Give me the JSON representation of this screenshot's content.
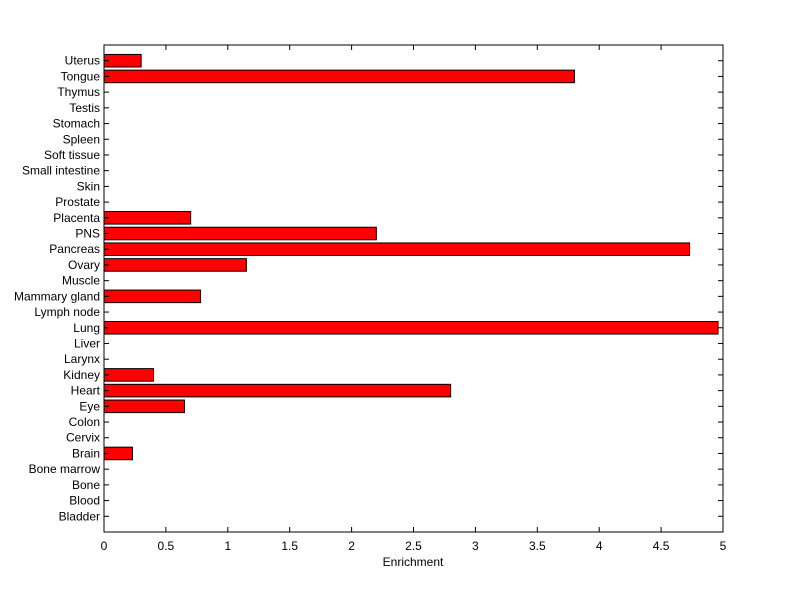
{
  "chart_data": {
    "type": "barh",
    "xlabel": "Enrichment",
    "categories": [
      "Bladder",
      "Blood",
      "Bone",
      "Bone marrow",
      "Brain",
      "Cervix",
      "Colon",
      "Eye",
      "Heart",
      "Kidney",
      "Larynx",
      "Liver",
      "Lung",
      "Lymph node",
      "Mammary gland",
      "Muscle",
      "Ovary",
      "Pancreas",
      "PNS",
      "Placenta",
      "Prostate",
      "Skin",
      "Small intestine",
      "Soft tissue",
      "Spleen",
      "Stomach",
      "Testis",
      "Thymus",
      "Tongue",
      "Uterus"
    ],
    "values": [
      0,
      0,
      0,
      0,
      0.23,
      0,
      0,
      0.65,
      2.8,
      0.4,
      0,
      0,
      4.96,
      0,
      0.78,
      0,
      1.15,
      4.73,
      2.2,
      0.7,
      0,
      0,
      0,
      0,
      0,
      0,
      0,
      0,
      3.8,
      0.3
    ],
    "color": "#ff0000",
    "xlim": [
      0,
      5
    ],
    "xticks": [
      0,
      0.5,
      1,
      1.5,
      2,
      2.5,
      3,
      3.5,
      4,
      4.5,
      5
    ]
  }
}
